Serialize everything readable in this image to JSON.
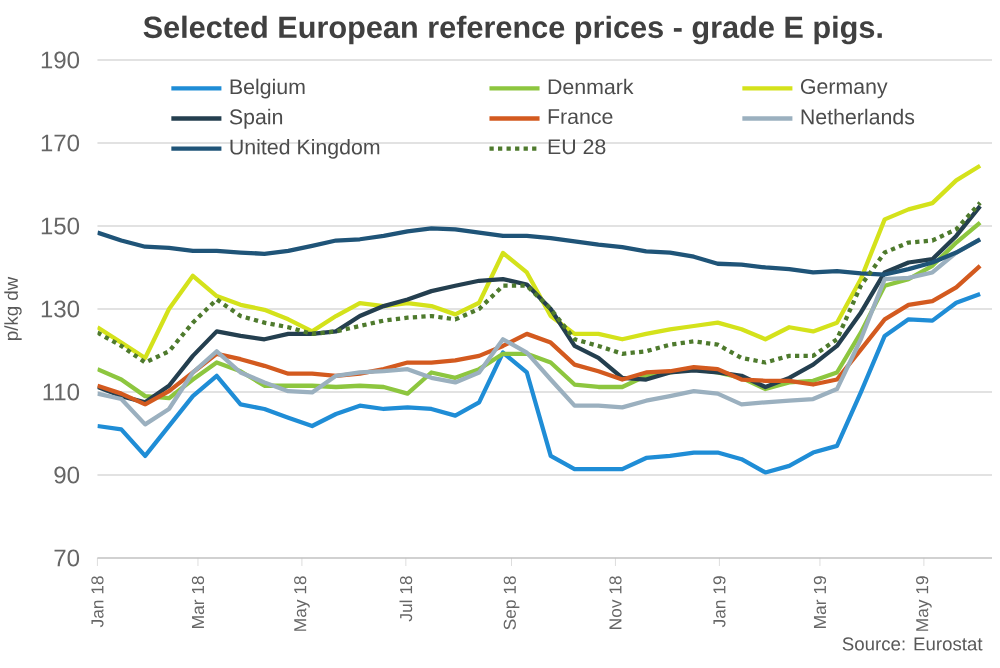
{
  "chart_data": {
    "type": "line",
    "title": "Selected European  reference prices - grade E pigs.",
    "ylabel": "p/kg dw",
    "annotations": [
      "Source: Eurostat"
    ],
    "x": [
      "2018-01-01",
      "2018-01-15",
      "2018-01-29",
      "2018-02-12",
      "2018-02-26",
      "2018-03-12",
      "2018-03-26",
      "2018-04-09",
      "2018-04-23",
      "2018-05-07",
      "2018-05-21",
      "2018-06-04",
      "2018-06-18",
      "2018-07-02",
      "2018-07-16",
      "2018-07-30",
      "2018-08-13",
      "2018-08-27",
      "2018-09-10",
      "2018-09-24",
      "2018-10-08",
      "2018-10-22",
      "2018-11-05",
      "2018-11-19",
      "2018-12-03",
      "2018-12-17",
      "2018-12-31",
      "2019-01-14",
      "2019-01-28",
      "2019-02-11",
      "2019-02-25",
      "2019-03-11",
      "2019-03-25",
      "2019-04-08",
      "2019-04-22",
      "2019-05-06",
      "2019-05-20",
      "2019-06-03"
    ],
    "series": [
      {
        "name": "Belgium",
        "color": "#1f8dd6",
        "values": [
          101.8,
          101,
          94.6,
          101.8,
          109,
          113.9,
          107,
          105.9,
          103.8,
          101.8,
          104.7,
          106.7,
          105.9,
          106.3,
          105.9,
          104.3,
          107.5,
          119.5,
          114.7,
          94.6,
          91.4,
          91.4,
          91.4,
          94.1,
          94.6,
          95.4,
          95.4,
          93.8,
          90.6,
          92.2,
          95.4,
          97,
          109.9,
          123.5,
          127.5,
          127.2,
          131.5,
          133.6
        ]
      },
      {
        "name": "Denmark",
        "color": "#8dc63f",
        "values": [
          115.5,
          113,
          109,
          108.5,
          113,
          117.1,
          115,
          111.5,
          111.5,
          111.5,
          111.2,
          111.5,
          111.2,
          109.6,
          114.7,
          113.4,
          115.5,
          119.2,
          119.2,
          117.1,
          111.8,
          111.2,
          111.2,
          113.9,
          114.7,
          115.5,
          114.7,
          113.4,
          110.7,
          112.3,
          112.7,
          114.7,
          124.3,
          135.6,
          137.2,
          140.4,
          146,
          150.8
        ]
      },
      {
        "name": "Germany",
        "color": "#d4e21b",
        "values": [
          125.6,
          121.9,
          118.2,
          130,
          138,
          133.1,
          131,
          129.8,
          127.5,
          124.6,
          128.3,
          131.4,
          130.7,
          131.4,
          130.7,
          128.7,
          131.5,
          143.5,
          138.8,
          128.3,
          124,
          124,
          122.7,
          124,
          125.1,
          125.9,
          126.7,
          125.1,
          122.7,
          125.6,
          124.6,
          126.7,
          137.2,
          151.6,
          154,
          155.5,
          161,
          164.5
        ]
      },
      {
        "name": "Spain",
        "color": "#243f4f",
        "values": [
          111.2,
          109,
          107.5,
          111.5,
          118.7,
          124.6,
          123.5,
          122.7,
          124,
          124,
          124.6,
          128.3,
          130.7,
          132.3,
          134.3,
          135.6,
          136.8,
          137.2,
          135.9,
          130,
          121.1,
          118.2,
          113.4,
          113,
          114.7,
          115.2,
          114.7,
          113.9,
          111.2,
          113.4,
          116.6,
          121.1,
          129.1,
          138.8,
          141.2,
          142,
          147.6,
          154.8
        ]
      },
      {
        "name": "France",
        "color": "#d35a1f",
        "values": [
          111.5,
          109.6,
          107,
          110.2,
          114.7,
          119.2,
          117.9,
          116.3,
          114.4,
          114.4,
          113.9,
          114.4,
          115.5,
          117.1,
          117.1,
          117.6,
          118.7,
          121.1,
          124,
          121.9,
          116.6,
          115,
          113,
          114.7,
          115,
          116,
          115.5,
          113,
          112.7,
          112.7,
          111.8,
          113,
          120.2,
          127.5,
          131,
          131.9,
          135.2,
          140.4
        ]
      },
      {
        "name": "Netherlands",
        "color": "#9bb0bf",
        "values": [
          109.6,
          108.3,
          102.2,
          105.9,
          114.7,
          119.8,
          114.7,
          112.3,
          110.2,
          109.9,
          113.9,
          114.7,
          115,
          115.5,
          113.4,
          112.3,
          114.7,
          122.7,
          119.5,
          113,
          106.7,
          106.7,
          106.3,
          107.9,
          109,
          110.2,
          109.6,
          107,
          107.5,
          107.9,
          108.3,
          110.7,
          122.7,
          137.2,
          137.5,
          138.8,
          143.6,
          146.8
        ]
      },
      {
        "name": "United Kingdom",
        "color": "#1f5478",
        "values": [
          148.4,
          146.5,
          145,
          144.7,
          144,
          144,
          143.6,
          143.3,
          144,
          145.2,
          146.5,
          146.8,
          147.6,
          148.7,
          149.4,
          149.2,
          148.4,
          147.6,
          147.6,
          147.1,
          146.3,
          145.5,
          144.9,
          143.9,
          143.6,
          142.6,
          140.9,
          140.7,
          140,
          139.6,
          138.8,
          139.1,
          138.6,
          138.3,
          139.6,
          141.2,
          143.6,
          146.8
        ]
      },
      {
        "name": "EU 28",
        "color": "#4e7a2d",
        "line_style": "dotted",
        "values": [
          124.3,
          121.1,
          117.1,
          119.8,
          126.7,
          132.3,
          128.3,
          126.7,
          125.6,
          124,
          124.6,
          125.9,
          127.2,
          127.9,
          128.3,
          127.5,
          130,
          135.6,
          135.6,
          130,
          122.7,
          121.1,
          119.2,
          119.8,
          121.4,
          122.2,
          121.4,
          118.2,
          117.1,
          118.7,
          118.7,
          122.7,
          135.6,
          143.6,
          146,
          146.5,
          149.2,
          155.6
        ]
      }
    ],
    "xlim": [
      "2018-01-01",
      "2019-06-10"
    ],
    "xticks": [
      {
        "value": "2018-01-01",
        "label": "Jan 18"
      },
      {
        "value": "2018-03-01",
        "label": "Mar 18"
      },
      {
        "value": "2018-05-01",
        "label": "May 18"
      },
      {
        "value": "2018-07-01",
        "label": "Jul 18"
      },
      {
        "value": "2018-09-01",
        "label": "Sep 18"
      },
      {
        "value": "2018-11-01",
        "label": "Nov 18"
      },
      {
        "value": "2019-01-01",
        "label": "Jan 19"
      },
      {
        "value": "2019-03-01",
        "label": "Mar 19"
      },
      {
        "value": "2019-05-01",
        "label": "May 19"
      }
    ],
    "ylim": [
      70,
      190
    ],
    "yticks": [
      70,
      90,
      110,
      130,
      150,
      170,
      190
    ],
    "grid": "y",
    "legend": "top",
    "marker": "none",
    "line_style": "solid"
  }
}
